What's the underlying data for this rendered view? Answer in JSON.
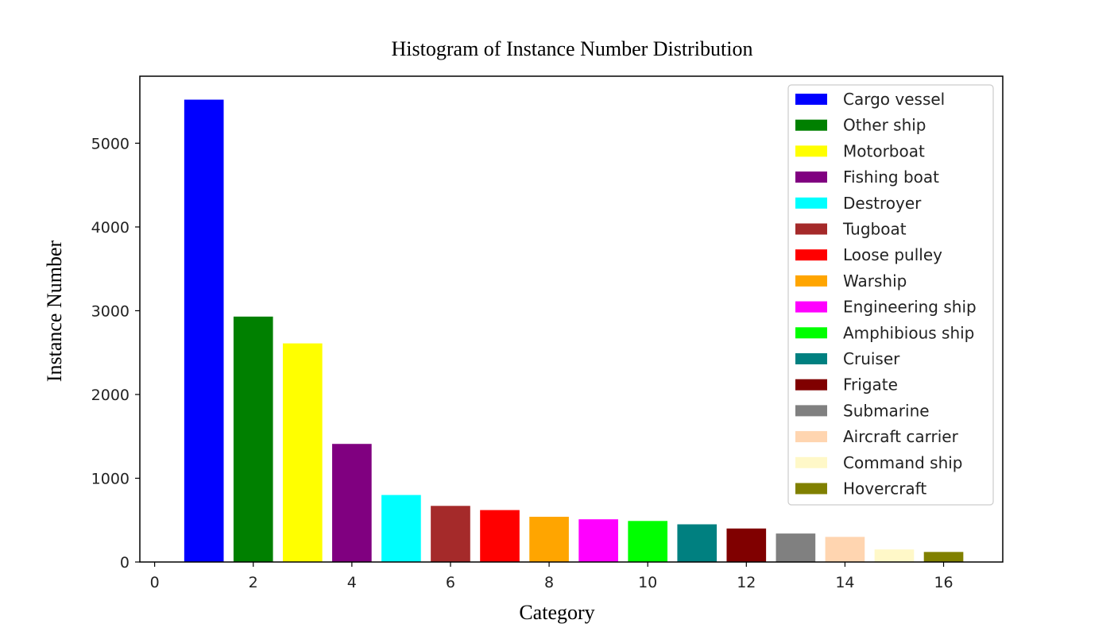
{
  "chart_data": {
    "type": "bar",
    "title": "Histogram of Instance Number Distribution",
    "xlabel": "Category",
    "ylabel": "Instance  Number",
    "xlim": [
      -0.3,
      17.2
    ],
    "ylim": [
      0,
      5800
    ],
    "xticks": [
      0,
      2,
      4,
      6,
      8,
      10,
      12,
      14,
      16
    ],
    "yticks": [
      0,
      1000,
      2000,
      3000,
      4000,
      5000
    ],
    "grid": false,
    "legend_position": "top-right",
    "categories": [
      {
        "x": 1,
        "name": "Cargo vessel",
        "value": 5520,
        "color": "#0000ff"
      },
      {
        "x": 2,
        "name": "Other ship",
        "value": 2930,
        "color": "#008000"
      },
      {
        "x": 3,
        "name": "Motorboat",
        "value": 2610,
        "color": "#ffff00"
      },
      {
        "x": 4,
        "name": "Fishing boat",
        "value": 1410,
        "color": "#800080"
      },
      {
        "x": 5,
        "name": "Destroyer",
        "value": 800,
        "color": "#00ffff"
      },
      {
        "x": 6,
        "name": "Tugboat",
        "value": 670,
        "color": "#a52a2a"
      },
      {
        "x": 7,
        "name": "Loose pulley",
        "value": 620,
        "color": "#ff0000"
      },
      {
        "x": 8,
        "name": "Warship",
        "value": 540,
        "color": "#ffa500"
      },
      {
        "x": 9,
        "name": "Engineering ship",
        "value": 510,
        "color": "#ff00ff"
      },
      {
        "x": 10,
        "name": "Amphibious ship",
        "value": 490,
        "color": "#00ff00"
      },
      {
        "x": 11,
        "name": "Cruiser",
        "value": 450,
        "color": "#008080"
      },
      {
        "x": 12,
        "name": "Frigate",
        "value": 400,
        "color": "#800000"
      },
      {
        "x": 13,
        "name": "Submarine",
        "value": 340,
        "color": "#808080"
      },
      {
        "x": 14,
        "name": "Aircraft carrier",
        "value": 300,
        "color": "#ffd5b0"
      },
      {
        "x": 15,
        "name": "Command ship",
        "value": 150,
        "color": "#fff8c8"
      },
      {
        "x": 16,
        "name": "Hovercraft",
        "value": 120,
        "color": "#808000"
      }
    ]
  }
}
